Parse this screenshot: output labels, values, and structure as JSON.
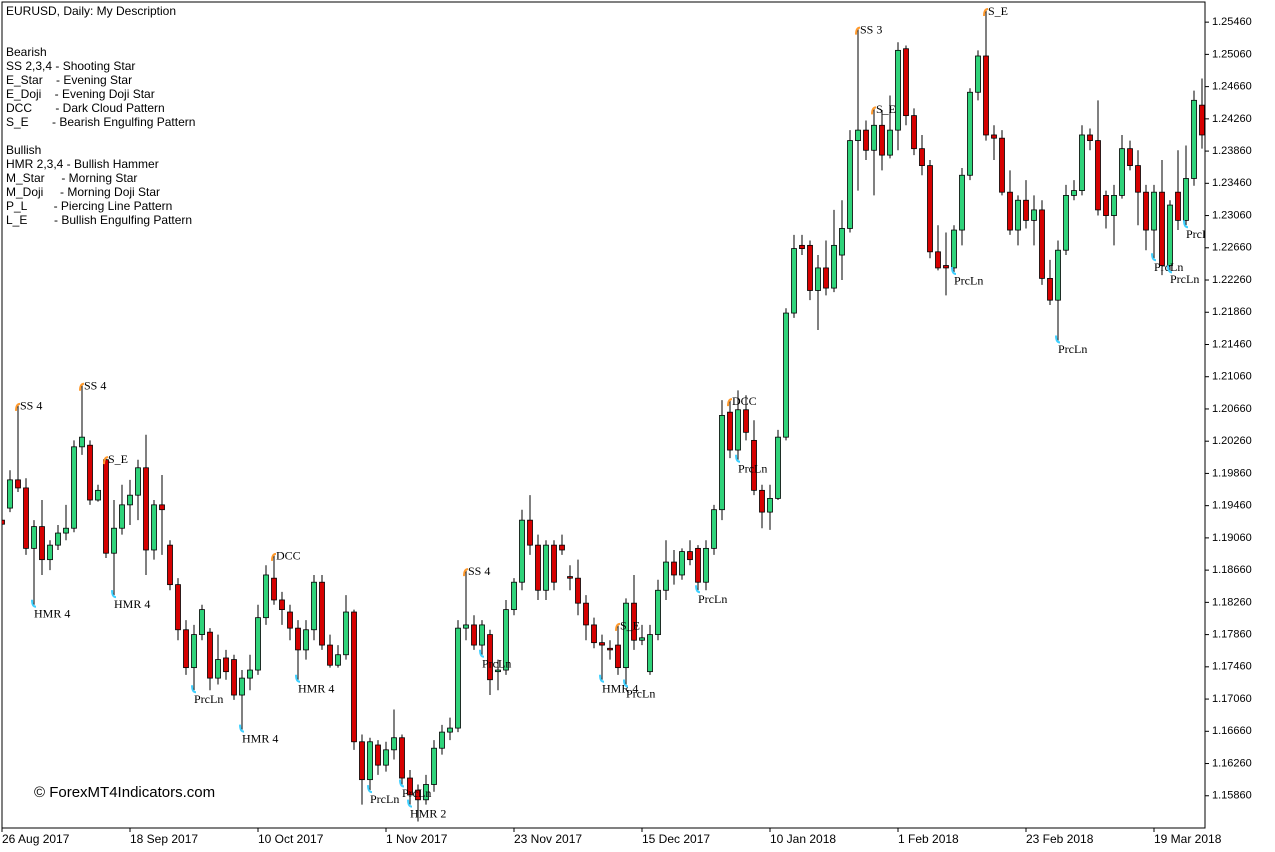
{
  "chart_data": {
    "type": "candlestick",
    "title": "EURUSD, Daily:  My Description",
    "watermark": "© ForexMT4Indicators.com",
    "pattern_key": [
      {
        "title": "Bearish",
        "lines": [
          "SS 2,3,4 - Shooting Star",
          "E_Star    - Evening Star",
          "E_Doji    - Evening Doji Star",
          "DCC       - Dark Cloud Pattern",
          "S_E       - Bearish Engulfing Pattern"
        ]
      },
      {
        "title": "Bullish",
        "lines": [
          "HMR 2,3,4 - Bullish Hammer",
          "M_Star     - Morning Star",
          "M_Doji     - Morning Doji Star",
          "P_L        - Piercing Line Pattern",
          "L_E        - Bullish Engulfing Pattern"
        ]
      }
    ],
    "up_color": "#2fd37a",
    "down_color": "#d60000",
    "categories": [
      "26 Aug 2017",
      null,
      null,
      null,
      null,
      null,
      null,
      null,
      null,
      null,
      null,
      null,
      null,
      null,
      null,
      null,
      "18 Sep 2017",
      null,
      null,
      null,
      null,
      null,
      null,
      null,
      null,
      null,
      null,
      null,
      null,
      null,
      null,
      null,
      "10 Oct 2017",
      null,
      null,
      null,
      null,
      null,
      null,
      null,
      null,
      null,
      null,
      null,
      null,
      null,
      null,
      null,
      "1 Nov 2017",
      null,
      null,
      null,
      null,
      null,
      null,
      null,
      null,
      null,
      null,
      null,
      null,
      null,
      null,
      null,
      "23 Nov 2017",
      null,
      null,
      null,
      null,
      null,
      null,
      null,
      null,
      null,
      null,
      null,
      null,
      null,
      null,
      null,
      "15 Dec 2017",
      null,
      null,
      null,
      null,
      null,
      null,
      null,
      null,
      null,
      null,
      null,
      null,
      null,
      null,
      null,
      "10 Jan 2018",
      null,
      null,
      null,
      null,
      null,
      null,
      null,
      null,
      null,
      null,
      null,
      null,
      null,
      null,
      null,
      "1 Feb 2018",
      null,
      null,
      null,
      null,
      null,
      null,
      null,
      null,
      null,
      null,
      null,
      null,
      null,
      null,
      null,
      "23 Feb 2018",
      null,
      null,
      null,
      null,
      null,
      null,
      null,
      null,
      null,
      null,
      null,
      null,
      null,
      null,
      null,
      "19 Mar 2018",
      null,
      null,
      null,
      null,
      null,
      null
    ],
    "open": [
      1.1928,
      1.1943,
      1.1978,
      1.1968,
      1.1893,
      1.192,
      1.1879,
      1.1897,
      1.1912,
      1.1918,
      1.2019,
      1.2021,
      1.1953,
      1.2003,
      1.1887,
      1.1918,
      1.1947,
      1.1959,
      1.1993,
      1.1891,
      1.1947,
      1.1897,
      1.1848,
      1.1792,
      1.1745,
      1.1786,
      1.1789,
      1.1732,
      1.1757,
      1.1755,
      1.1711,
      1.1732,
      1.1742,
      1.1807,
      1.1856,
      1.1829,
      1.1814,
      1.1794,
      1.1767,
      1.1792,
      1.1851,
      1.1773,
      1.1748,
      1.1761,
      1.1814,
      1.1653,
      1.1606,
      1.1649,
      1.1624,
      1.1643,
      1.1658,
      1.1608,
      1.1593,
      1.1581,
      1.16,
      1.1645,
      1.1665,
      1.167,
      1.1794,
      1.1798,
      1.1773,
      1.1786,
      1.174,
      1.1742,
      1.1817,
      1.1851,
      1.1928,
      1.1897,
      1.1841,
      1.1897,
      1.1897,
      1.1858,
      1.1856,
      1.1825,
      1.1798,
      1.1776,
      1.1769,
      1.1773,
      1.1745,
      1.1825,
      1.1779,
      1.174,
      1.1786,
      1.1841,
      1.1876,
      1.186,
      1.1889,
      1.1893,
      1.1851,
      1.1893,
      1.1941,
      1.2062,
      1.2015,
      1.2065,
      1.2027,
      1.1965,
      1.1938,
      1.1955,
      1.2031,
      1.2185,
      1.2269,
      1.2269,
      1.2213,
      1.2241,
      1.2216,
      1.2257,
      1.229,
      1.2399,
      1.2412,
      1.2387,
      1.2418,
      1.2381,
      1.2412,
      1.2513,
      1.243,
      1.2389,
      1.2368,
      1.2261,
      1.2244,
      1.2241,
      1.2288,
      1.2356,
      1.2459,
      1.2504,
      1.2406,
      1.2402,
      1.2335,
      1.2288,
      1.2325,
      1.23,
      1.2313,
      1.2228,
      1.2201,
      1.2263,
      1.2331,
      1.2337,
      1.2406,
      1.2399,
      1.2331,
      1.2306,
      1.2331,
      1.2389,
      1.2368,
      1.2335,
      1.2288,
      1.2335,
      1.2244,
      1.2335,
      1.23,
      1.2352,
      1.2443
    ],
    "high": [
      1.1941,
      1.199,
      1.2071,
      1.198,
      1.1928,
      1.1953,
      1.1903,
      1.1922,
      1.1947,
      1.2027,
      1.2096,
      1.2027,
      1.1972,
      1.2005,
      1.1953,
      1.1972,
      1.1978,
      1.2003,
      1.2034,
      1.1953,
      1.1984,
      1.1903,
      1.1856,
      1.1804,
      1.1798,
      1.1823,
      1.1794,
      1.1786,
      1.1767,
      1.1761,
      1.1742,
      1.1761,
      1.1823,
      1.1872,
      1.1885,
      1.1839,
      1.1823,
      1.1804,
      1.1804,
      1.186,
      1.186,
      1.1786,
      1.1773,
      1.1835,
      1.1817,
      1.1662,
      1.1658,
      1.1655,
      1.1653,
      1.1693,
      1.1662,
      1.1618,
      1.16,
      1.1612,
      1.1655,
      1.1674,
      1.1683,
      1.1804,
      1.1866,
      1.181,
      1.1804,
      1.1792,
      1.1755,
      1.1829,
      1.1856,
      1.1941,
      1.1959,
      1.191,
      1.1903,
      1.1903,
      1.191,
      1.1872,
      1.1879,
      1.1835,
      1.1807,
      1.1786,
      1.1779,
      1.1798,
      1.1831,
      1.186,
      1.1798,
      1.1798,
      1.1854,
      1.1903,
      1.1891,
      1.1893,
      1.1903,
      1.1897,
      1.1903,
      1.1947,
      1.2077,
      1.2077,
      1.2089,
      1.2083,
      1.2052,
      1.1972,
      1.1972,
      1.204,
      1.2191,
      1.2282,
      1.2282,
      1.2275,
      1.2257,
      1.2275,
      1.2313,
      1.2325,
      1.2412,
      1.2538,
      1.2424,
      1.2439,
      1.2437,
      1.2455,
      1.2521,
      1.2517,
      1.2439,
      1.2406,
      1.2375,
      1.2294,
      1.2285,
      1.2294,
      1.2365,
      1.2464,
      1.2511,
      1.2561,
      1.2418,
      1.2412,
      1.2362,
      1.2331,
      1.235,
      1.2331,
      1.2325,
      1.2251,
      1.2275,
      1.2344,
      1.235,
      1.2418,
      1.2414,
      1.2449,
      1.2337,
      1.2344,
      1.2406,
      1.2399,
      1.2387,
      1.2344,
      1.2344,
      1.2375,
      1.2325,
      1.2387,
      1.2393,
      1.2461,
      1.2476
    ],
    "low": [
      1.1918,
      1.1938,
      1.1963,
      1.1885,
      1.1823,
      1.186,
      1.1866,
      1.1891,
      1.1903,
      1.1913,
      1.2009,
      1.1947,
      1.1951,
      1.1881,
      1.1835,
      1.191,
      1.1922,
      1.1928,
      1.186,
      1.1879,
      1.1885,
      1.1841,
      1.1779,
      1.1736,
      1.1717,
      1.1779,
      1.1717,
      1.1724,
      1.173,
      1.1705,
      1.1668,
      1.1717,
      1.1736,
      1.1798,
      1.1823,
      1.1798,
      1.1779,
      1.173,
      1.1755,
      1.1779,
      1.1767,
      1.1745,
      1.1745,
      1.1755,
      1.1643,
      1.1575,
      1.1593,
      1.1612,
      1.1616,
      1.1631,
      1.16,
      1.1575,
      1.1554,
      1.1575,
      1.1591,
      1.1637,
      1.1655,
      1.1665,
      1.1779,
      1.1767,
      1.1761,
      1.1711,
      1.1717,
      1.1736,
      1.181,
      1.1841,
      1.1885,
      1.1829,
      1.1829,
      1.1841,
      1.1885,
      1.1841,
      1.181,
      1.1779,
      1.1769,
      1.173,
      1.1755,
      1.1736,
      1.1724,
      1.1767,
      1.1773,
      1.1736,
      1.1779,
      1.1829,
      1.1848,
      1.1854,
      1.1872,
      1.1841,
      1.1841,
      1.1885,
      1.1928,
      1.2005,
      1.2003,
      1.2027,
      1.1959,
      1.1918,
      1.1916,
      1.1953,
      1.2027,
      1.2179,
      1.2257,
      1.2201,
      1.2164,
      1.2207,
      1.2211,
      1.2226,
      1.2285,
      1.2337,
      1.2375,
      1.2331,
      1.2362,
      1.2377,
      1.2387,
      1.2418,
      1.2381,
      1.2356,
      1.2253,
      1.2238,
      1.2207,
      1.2236,
      1.2269,
      1.235,
      1.2449,
      1.2399,
      1.2375,
      1.2331,
      1.2282,
      1.2269,
      1.229,
      1.2269,
      1.222,
      1.2195,
      1.2151,
      1.2257,
      1.2325,
      1.2331,
      1.2387,
      1.2306,
      1.229,
      1.2269,
      1.2327,
      1.2362,
      1.2294,
      1.2263,
      1.2253,
      1.2232,
      1.2238,
      1.2288,
      1.2294,
      1.2343,
      1.2389
    ],
    "close": [
      1.1923,
      1.1978,
      1.1968,
      1.1893,
      1.192,
      1.1879,
      1.1897,
      1.1912,
      1.1918,
      1.2019,
      1.2031,
      1.1953,
      1.1965,
      1.1887,
      1.1918,
      1.1947,
      1.1959,
      1.1993,
      1.1891,
      1.1947,
      1.1941,
      1.1848,
      1.1792,
      1.1745,
      1.1786,
      1.1817,
      1.1732,
      1.1755,
      1.174,
      1.1711,
      1.1732,
      1.1742,
      1.1807,
      1.186,
      1.1829,
      1.1817,
      1.1794,
      1.1767,
      1.1792,
      1.1851,
      1.1773,
      1.1748,
      1.1761,
      1.1814,
      1.1653,
      1.1606,
      1.1653,
      1.1624,
      1.1643,
      1.1658,
      1.1608,
      1.1587,
      1.1581,
      1.16,
      1.1645,
      1.1665,
      1.167,
      1.1794,
      1.1798,
      1.1773,
      1.1798,
      1.173,
      1.1742,
      1.1817,
      1.1851,
      1.1928,
      1.1897,
      1.1841,
      1.1897,
      1.1851,
      1.1891,
      1.1856,
      1.1825,
      1.1798,
      1.1776,
      1.1773,
      1.1767,
      1.1745,
      1.1825,
      1.1779,
      1.1782,
      1.1786,
      1.1841,
      1.1876,
      1.186,
      1.1889,
      1.1879,
      1.1851,
      1.1893,
      1.1941,
      1.2058,
      1.2015,
      1.2065,
      1.2037,
      1.1965,
      1.1938,
      1.1955,
      1.2031,
      1.2185,
      1.2265,
      1.2265,
      1.2213,
      1.2241,
      1.2216,
      1.2269,
      1.229,
      1.2399,
      1.2412,
      1.2387,
      1.2418,
      1.2381,
      1.2412,
      1.2511,
      1.243,
      1.2389,
      1.2368,
      1.2261,
      1.2241,
      1.2241,
      1.2288,
      1.2356,
      1.2459,
      1.2504,
      1.2406,
      1.2402,
      1.2335,
      1.2288,
      1.2325,
      1.23,
      1.2313,
      1.2228,
      1.2201,
      1.2263,
      1.2331,
      1.2337,
      1.2406,
      1.2399,
      1.2313,
      1.2306,
      1.2331,
      1.2389,
      1.2368,
      1.2335,
      1.2288,
      1.2335,
      1.2244,
      1.2319,
      1.23,
      1.2352,
      1.2449,
      1.2406
    ],
    "annotations": [
      {
        "text": "SS 4",
        "index": 2,
        "side": "high",
        "color": "#e0157a"
      },
      {
        "text": "HMR 4",
        "index": 4,
        "side": "low",
        "color": "#1a1ad0"
      },
      {
        "text": "SS 4",
        "index": 10,
        "side": "high",
        "color": "#e0157a"
      },
      {
        "text": "S_E",
        "index": 13,
        "side": "high",
        "color": "#d42020"
      },
      {
        "text": "HMR 4",
        "index": 14,
        "side": "low",
        "color": "#1a1ad0"
      },
      {
        "text": "PrcLn",
        "index": 24,
        "side": "low",
        "color": "#1a1ad0"
      },
      {
        "text": "HMR 4",
        "index": 30,
        "side": "low",
        "color": "#1a1ad0"
      },
      {
        "text": "DCC",
        "index": 34,
        "side": "high",
        "color": "#d42020"
      },
      {
        "text": "HMR 4",
        "index": 37,
        "side": "low",
        "color": "#1a1ad0"
      },
      {
        "text": "PrcLn",
        "index": 46,
        "side": "low",
        "color": "#1a1ad0"
      },
      {
        "text": "PrcLn",
        "index": 50,
        "side": "low",
        "color": "#1a1ad0"
      },
      {
        "text": "HMR 2",
        "index": 51,
        "side": "low",
        "color": "#1a1ad0"
      },
      {
        "text": "SS 4",
        "index": 58,
        "side": "high",
        "color": "#e0157a"
      },
      {
        "text": "PrcLn",
        "index": 60,
        "side": "low",
        "color": "#1a1ad0"
      },
      {
        "text": "HMR 4",
        "index": 75,
        "side": "low",
        "color": "#1a1ad0"
      },
      {
        "text": "S_E",
        "index": 77,
        "side": "high",
        "color": "#d42020"
      },
      {
        "text": "PrcLn",
        "index": 78,
        "side": "low",
        "color": "#1a1ad0"
      },
      {
        "text": "PrcLn",
        "index": 87,
        "side": "low",
        "color": "#1a1ad0"
      },
      {
        "text": "DCC",
        "index": 91,
        "side": "high",
        "color": "#d42020"
      },
      {
        "text": "PrcLn",
        "index": 92,
        "side": "low",
        "color": "#1a1ad0"
      },
      {
        "text": "SS 3",
        "index": 107,
        "side": "high",
        "color": "#e0157a"
      },
      {
        "text": "S_E",
        "index": 109,
        "side": "high",
        "color": "#d42020"
      },
      {
        "text": "PrcLn",
        "index": 119,
        "side": "low",
        "color": "#1a1ad0"
      },
      {
        "text": "S_E",
        "index": 123,
        "side": "high",
        "color": "#d42020"
      },
      {
        "text": "PrcLn",
        "index": 132,
        "side": "low",
        "color": "#1a1ad0"
      },
      {
        "text": "PrcLn",
        "index": 144,
        "side": "low",
        "color": "#1a1ad0"
      },
      {
        "text": "PrcLn",
        "index": 146,
        "side": "low",
        "color": "#1a1ad0"
      },
      {
        "text": "PrcLn",
        "index": 148,
        "side": "low",
        "color": "#1a1ad0"
      }
    ],
    "ylim": [
      1.1546,
      1.2571
    ],
    "yticks": [
      {
        "value": 1.2546,
        "label": "1.25460"
      },
      {
        "value": 1.2506,
        "label": "1.25060"
      },
      {
        "value": 1.2466,
        "label": "1.24660"
      },
      {
        "value": 1.2426,
        "label": "1.24260"
      },
      {
        "value": 1.2386,
        "label": "1.23860"
      },
      {
        "value": 1.2346,
        "label": "1.23460"
      },
      {
        "value": 1.2306,
        "label": "1.23060"
      },
      {
        "value": 1.2266,
        "label": "1.22660"
      },
      {
        "value": 1.2226,
        "label": "1.22260"
      },
      {
        "value": 1.2186,
        "label": "1.21860"
      },
      {
        "value": 1.2146,
        "label": "1.21460"
      },
      {
        "value": 1.2106,
        "label": "1.21060"
      },
      {
        "value": 1.2066,
        "label": "1.20660"
      },
      {
        "value": 1.2026,
        "label": "1.20260"
      },
      {
        "value": 1.1986,
        "label": "1.19860"
      },
      {
        "value": 1.1946,
        "label": "1.19460"
      },
      {
        "value": 1.1906,
        "label": "1.19060"
      },
      {
        "value": 1.1866,
        "label": "1.18660"
      },
      {
        "value": 1.1826,
        "label": "1.18260"
      },
      {
        "value": 1.1786,
        "label": "1.17860"
      },
      {
        "value": 1.1746,
        "label": "1.17460"
      },
      {
        "value": 1.1706,
        "label": "1.17060"
      },
      {
        "value": 1.1666,
        "label": "1.16660"
      },
      {
        "value": 1.1626,
        "label": "1.16260"
      },
      {
        "value": 1.1586,
        "label": "1.15860"
      }
    ],
    "grid": false
  }
}
